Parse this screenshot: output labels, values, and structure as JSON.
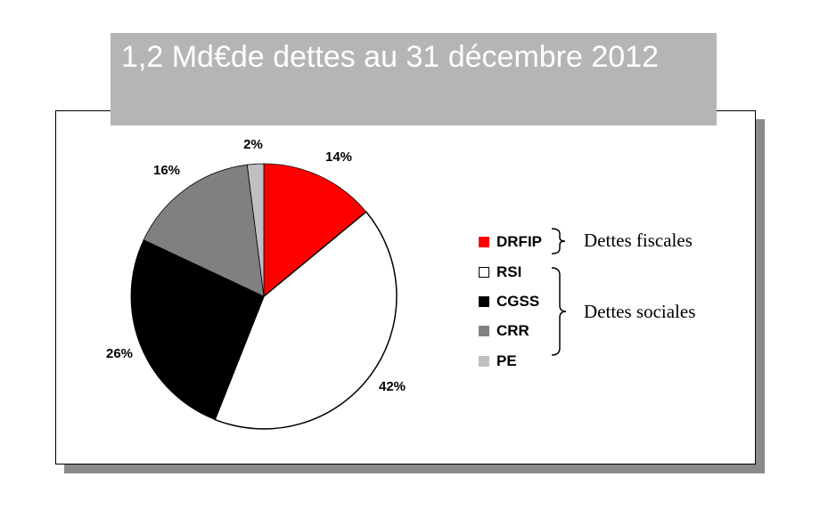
{
  "title": "1,2 Md€de dettes au 31 décembre 2012",
  "colors": {
    "DRFIP": "#ff0000",
    "RSI": "#ffffff",
    "CGSS": "#000000",
    "CRR": "#808080",
    "PE": "#c0c0c0",
    "title_bg": "#b5b5b5",
    "shadow": "#8a8a8a"
  },
  "chart_data": {
    "type": "pie",
    "title": "1,2 Md€de dettes au 31 décembre 2012",
    "slices": [
      {
        "name": "DRFIP",
        "value": 14,
        "label": "14%"
      },
      {
        "name": "RSI",
        "value": 42,
        "label": "42%"
      },
      {
        "name": "CGSS",
        "value": 26,
        "label": "26%"
      },
      {
        "name": "CRR",
        "value": 16,
        "label": "16%"
      },
      {
        "name": "PE",
        "value": 2,
        "label": "2%"
      }
    ],
    "legend": [
      "DRFIP",
      "RSI",
      "CGSS",
      "CRR",
      "PE"
    ],
    "legend_position": "right",
    "groups": [
      {
        "label": "Dettes fiscales",
        "members": [
          "DRFIP"
        ]
      },
      {
        "label": "Dettes sociales",
        "members": [
          "RSI",
          "CGSS",
          "CRR",
          "PE"
        ]
      }
    ]
  }
}
